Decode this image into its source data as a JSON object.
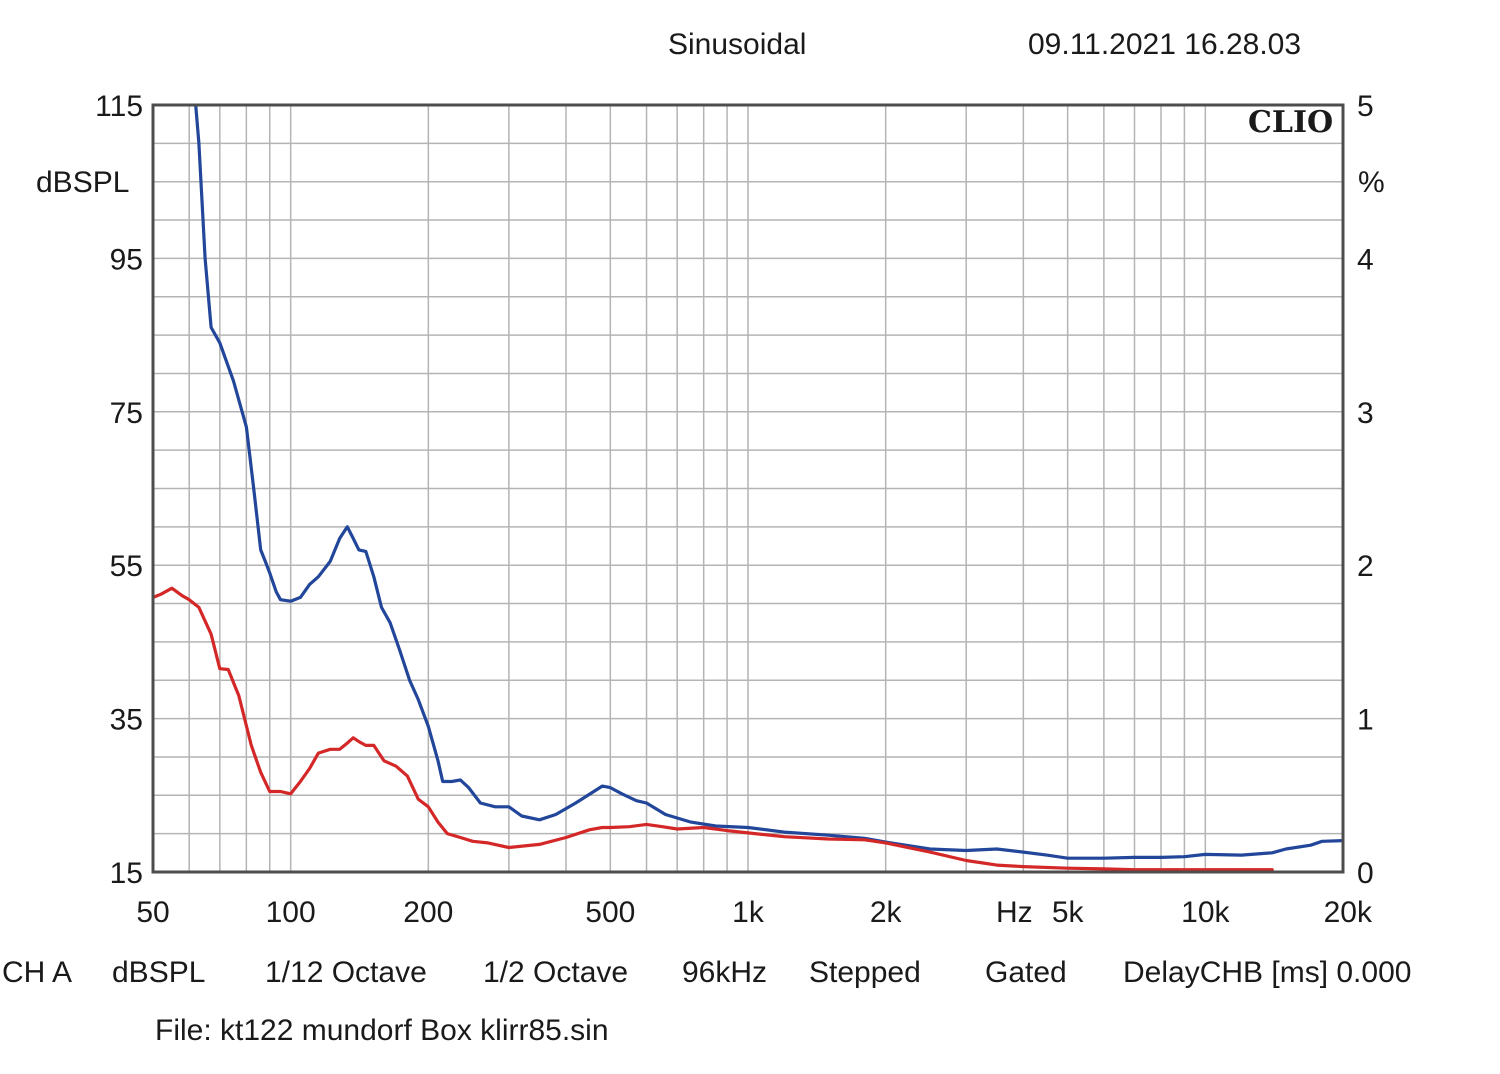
{
  "header": {
    "mode": "Sinusoidal",
    "timestamp": "09.11.2021 16.28.03"
  },
  "brand": "CLIO",
  "status_line": {
    "channel": "CH A",
    "unit": "dBSPL",
    "resolution": "1/12 Octave",
    "smoothing": "1/2 Octave",
    "sample_rate": "96kHz",
    "sweep": "Stepped",
    "window": "Gated",
    "delay": "DelayCHB [ms] 0.000"
  },
  "file": "File: kt122 mundorf Box klirr85.sin",
  "chart_data": {
    "type": "line",
    "x_scale": "log",
    "xlim": [
      50,
      20000
    ],
    "x_ticks": [
      {
        "value": 50,
        "label": "50"
      },
      {
        "value": 100,
        "label": "100"
      },
      {
        "value": 200,
        "label": "200"
      },
      {
        "value": 500,
        "label": "500"
      },
      {
        "value": 1000,
        "label": "1k"
      },
      {
        "value": 2000,
        "label": "2k"
      },
      {
        "value": 5000,
        "label": "5k"
      },
      {
        "value": 10000,
        "label": "10k"
      },
      {
        "value": 20000,
        "label": "20k"
      }
    ],
    "x_unit_label": "Hz",
    "ylim_left": [
      15,
      115
    ],
    "y_ticks_left": [
      "115",
      "95",
      "75",
      "55",
      "35",
      "15"
    ],
    "ylabel_left": "dBSPL",
    "ylim_right": [
      0,
      5
    ],
    "y_ticks_right": [
      "5",
      "4",
      "3",
      "2",
      "1",
      "0"
    ],
    "ylabel_right": "%",
    "grid": true,
    "colors": {
      "series1": "#22469a",
      "series2": "#d42828",
      "grid": "#b4b4b4",
      "axis": "#4d4d4d"
    },
    "series": [
      {
        "color": "#22469a",
        "axis": "left",
        "x": [
          62,
          63,
          65,
          67,
          70,
          75,
          80,
          83,
          86,
          88,
          90,
          93,
          95,
          100,
          105,
          110,
          115,
          122,
          128,
          133,
          137,
          141,
          146,
          152,
          158,
          165,
          173,
          182,
          190,
          200,
          210,
          215,
          225,
          235,
          245,
          260,
          280,
          300,
          320,
          350,
          380,
          420,
          460,
          480,
          500,
          530,
          570,
          600,
          660,
          750,
          850,
          1000,
          1200,
          1500,
          1800,
          2000,
          2500,
          3000,
          3500,
          4000,
          4500,
          5000,
          6000,
          7000,
          8000,
          9000,
          10000,
          12000,
          14000,
          15000,
          17000,
          18000,
          20000
        ],
        "values": [
          115,
          110,
          95,
          86,
          84,
          79,
          73,
          65,
          57,
          55.5,
          54,
          51.5,
          50.5,
          50.3,
          50.8,
          52.5,
          53.5,
          55.5,
          58.5,
          60,
          58.5,
          57,
          56.8,
          53.5,
          49.5,
          47.5,
          44,
          40,
          37.5,
          34,
          29.5,
          26.8,
          26.8,
          27,
          26,
          24,
          23.5,
          23.5,
          22.3,
          21.8,
          22.5,
          24,
          25.5,
          26.2,
          26,
          25.2,
          24.3,
          24,
          22.5,
          21.5,
          21,
          20.8,
          20.2,
          19.8,
          19.4,
          18.9,
          18,
          17.8,
          18,
          17.6,
          17.2,
          16.8,
          16.8,
          16.9,
          16.9,
          17,
          17.3,
          17.2,
          17.5,
          18,
          18.5,
          19,
          19.1
        ]
      },
      {
        "color": "#d42828",
        "axis": "left",
        "x": [
          50,
          52,
          55,
          58,
          60,
          63,
          67,
          70,
          73,
          77,
          82,
          86,
          90,
          95,
          100,
          105,
          110,
          115,
          122,
          128,
          133,
          137,
          141,
          146,
          152,
          160,
          170,
          180,
          190,
          200,
          210,
          220,
          235,
          250,
          270,
          300,
          350,
          400,
          450,
          480,
          500,
          550,
          600,
          650,
          700,
          800,
          900,
          1000,
          1200,
          1500,
          1800,
          2000,
          2500,
          3000,
          3500,
          4000,
          5000,
          6000,
          7000,
          8000,
          9000,
          10000,
          12000,
          14000
        ],
        "values": [
          50.8,
          51.2,
          52,
          51,
          50.5,
          49.5,
          46,
          41.5,
          41.4,
          38,
          31.5,
          28,
          25.5,
          25.5,
          25.2,
          26.8,
          28.5,
          30.5,
          31,
          31,
          31.8,
          32.5,
          32,
          31.5,
          31.5,
          29.5,
          28.8,
          27.5,
          24.5,
          23.5,
          21.5,
          20,
          19.5,
          19,
          18.8,
          18.2,
          18.6,
          19.5,
          20.5,
          20.8,
          20.8,
          20.9,
          21.2,
          20.9,
          20.6,
          20.8,
          20.4,
          20.1,
          19.6,
          19.3,
          19.2,
          18.8,
          17.6,
          16.5,
          15.9,
          15.7,
          15.5,
          15.4,
          15.3,
          15.3,
          15.3,
          15.3,
          15.3,
          15.3
        ]
      }
    ]
  }
}
